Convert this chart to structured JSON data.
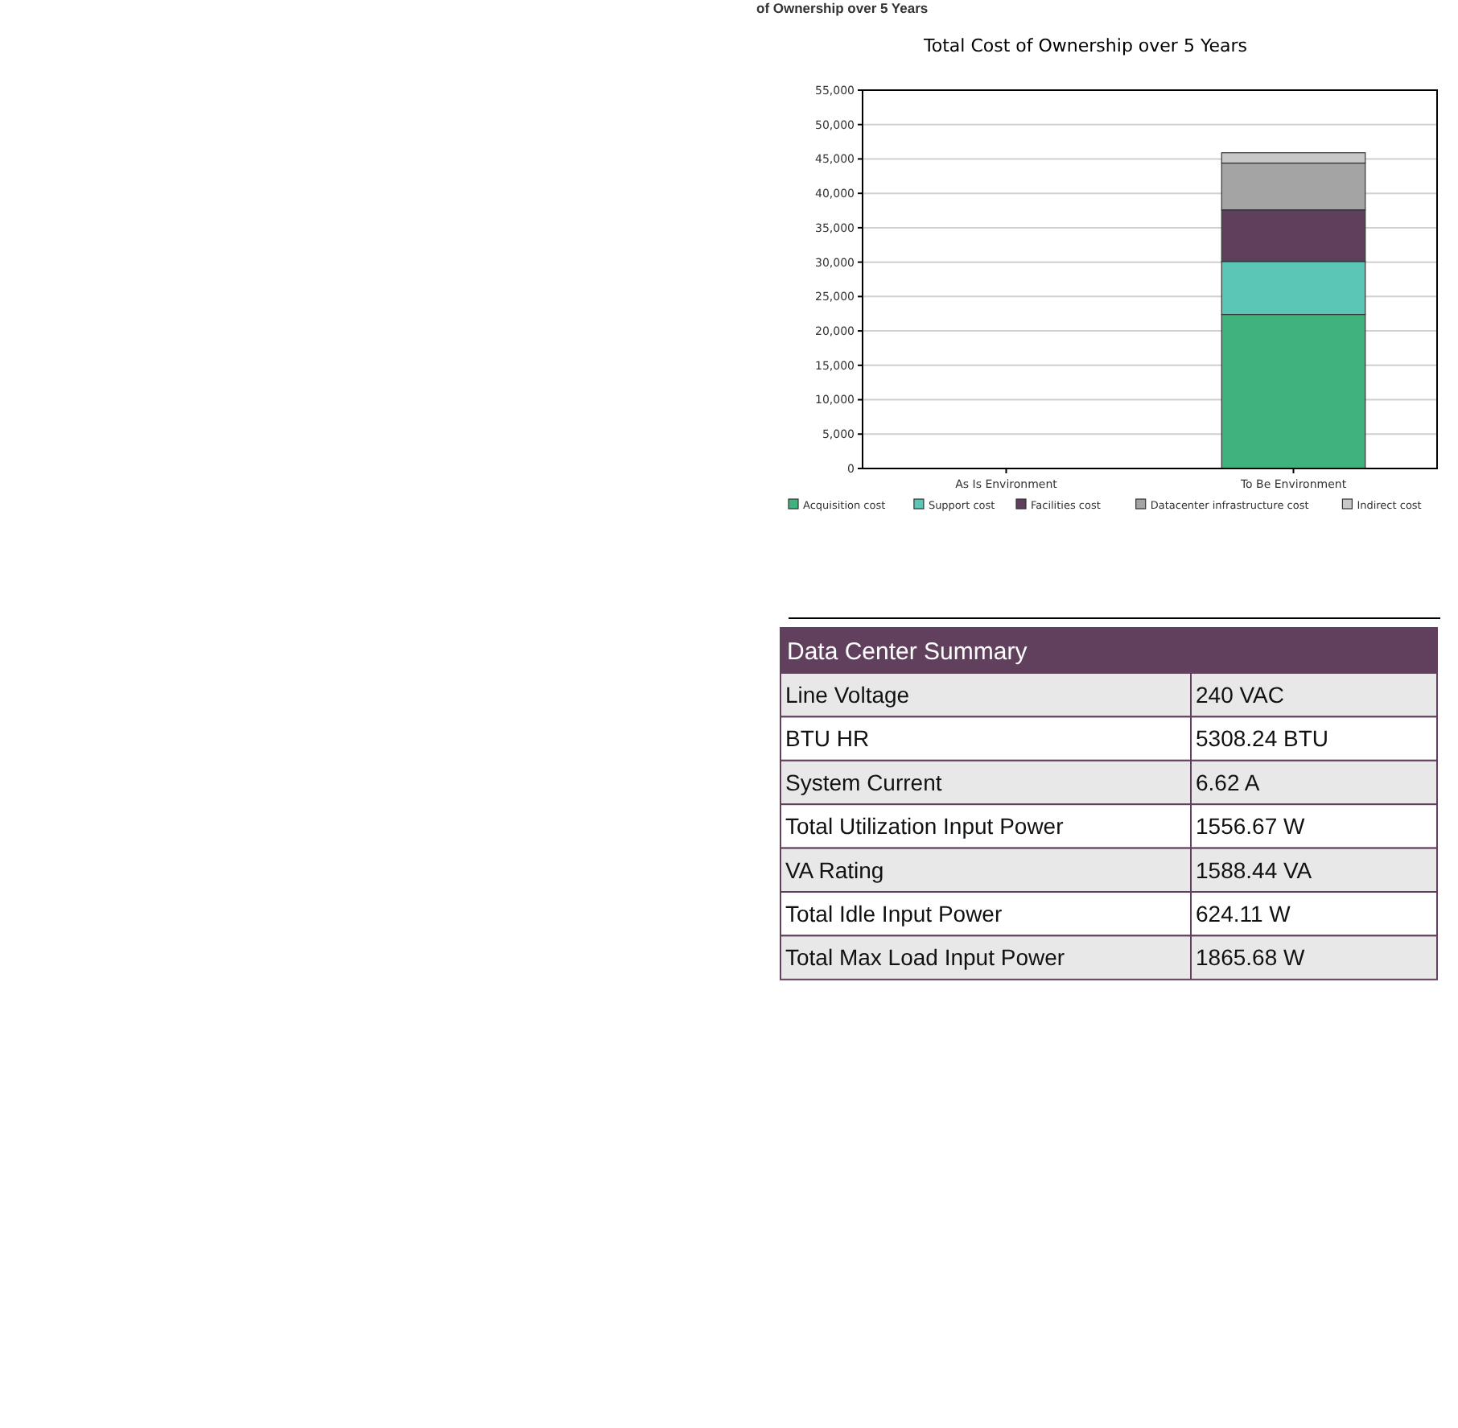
{
  "chart_data": [
    {
      "type": "bar",
      "title": "Total Cost of Ownership over 5 Years",
      "annotations": [
        "of Ownership over 5 Years"
      ],
      "categories": [
        "As Is Environment",
        "To Be Environment"
      ],
      "stacked": true,
      "series": [
        {
          "name": "Acquisition cost",
          "color": "#40b27e",
          "values": [
            0,
            22400
          ]
        },
        {
          "name": "Support cost",
          "color": "#5cc6b6",
          "values": [
            0,
            7700
          ]
        },
        {
          "name": "Facilities cost",
          "color": "#5f405c",
          "values": [
            0,
            7500
          ]
        },
        {
          "name": "Datacenter infrastructure cost",
          "color": "#a5a4a5",
          "values": [
            0,
            6800
          ]
        },
        {
          "name": "Indirect cost",
          "color": "#c8c8c8",
          "values": [
            0,
            1500
          ]
        }
      ],
      "ylim": [
        0,
        55000
      ],
      "yticks": [
        0,
        {
          "value": 5000,
          "label": "5,000"
        },
        {
          "value": 10000,
          "label": "10,000"
        },
        {
          "value": 15000,
          "label": "15,000"
        },
        {
          "value": 20000,
          "label": "20,000"
        },
        {
          "value": 25000,
          "label": "25,000"
        },
        {
          "value": 30000,
          "label": "30,000"
        },
        {
          "value": 35000,
          "label": "35,000"
        },
        {
          "value": 40000,
          "label": "40,000"
        },
        {
          "value": 45000,
          "label": "45,000"
        },
        {
          "value": 50000,
          "label": "50,000"
        },
        {
          "value": 55000,
          "label": "55,000"
        }
      ],
      "grid": "y",
      "legend": "bottom"
    },
    {
      "type": "other",
      "title": "Data Center Summary",
      "categories": [
        "Line Voltage",
        "BTU HR",
        "System Current",
        "Total Utilization Input Power",
        "VA Rating",
        "Total Idle Input Power",
        "Total Max Load Input Power"
      ],
      "value_labels": [
        "240 VAC",
        "5308.24 BTU",
        "6.62 A",
        "1556.67 W",
        "1588.44 VA",
        "624.11 W",
        "1865.68 W"
      ]
    }
  ]
}
